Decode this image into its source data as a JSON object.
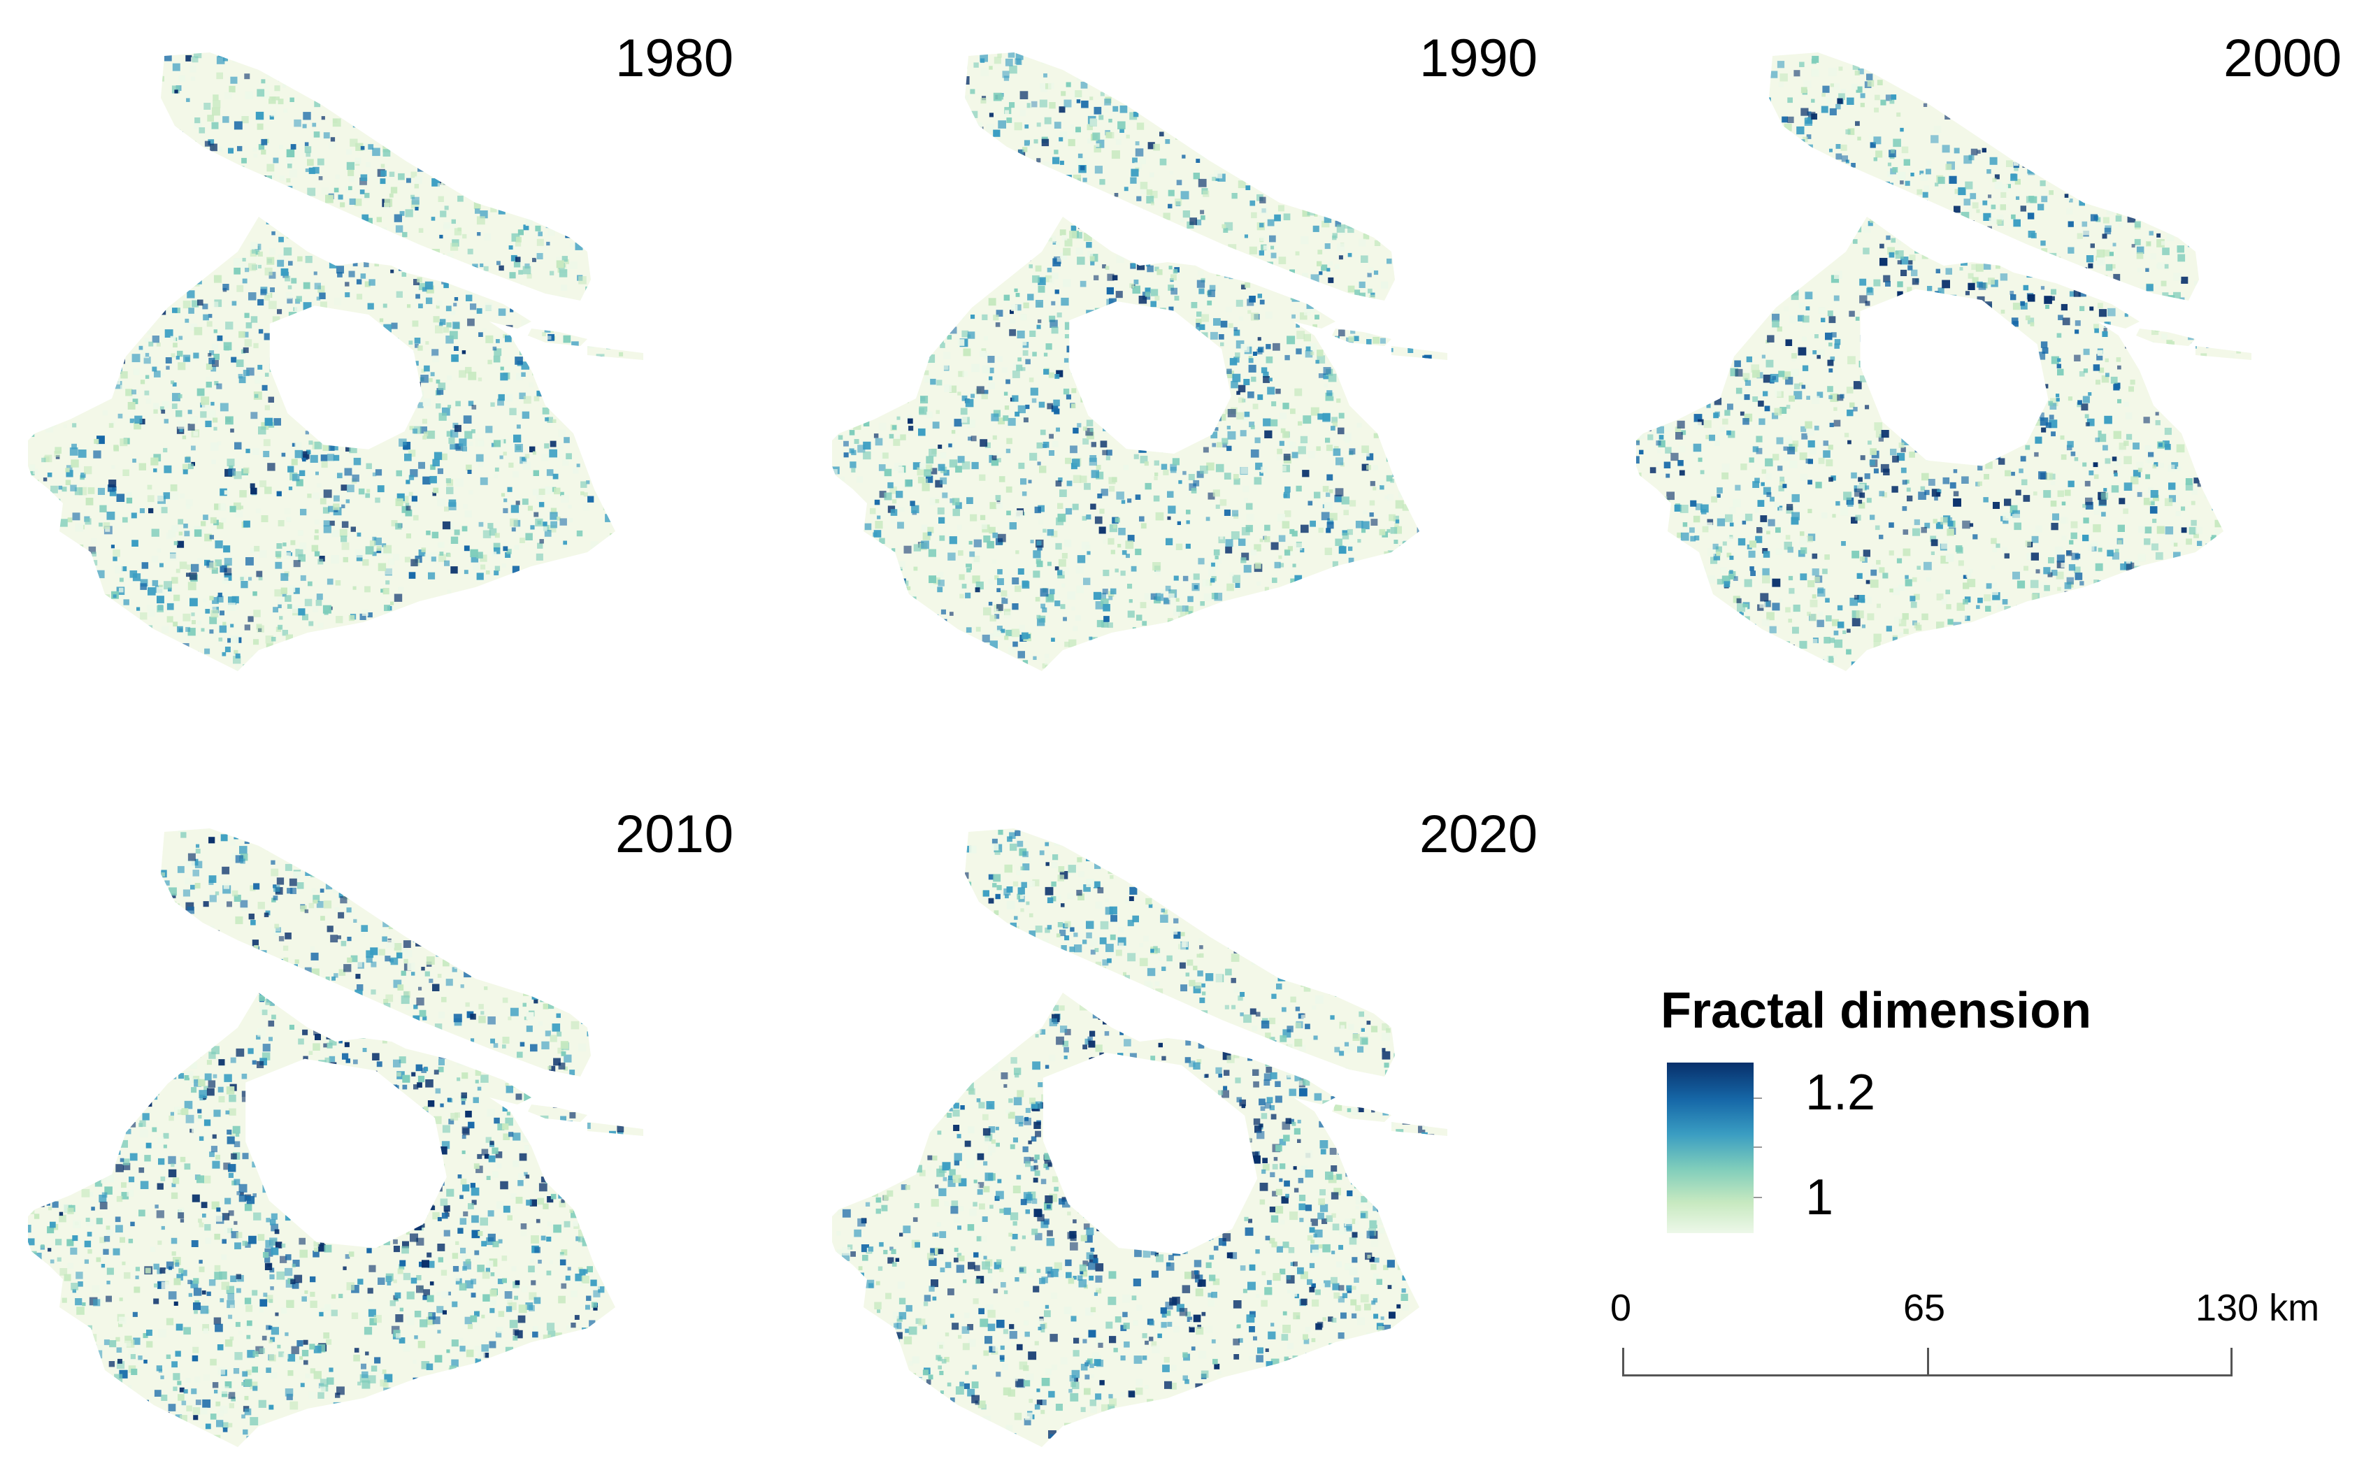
{
  "panels": [
    {
      "year": "1980",
      "intensity": 0.35
    },
    {
      "year": "1990",
      "intensity": 0.42
    },
    {
      "year": "2000",
      "intensity": 0.62
    },
    {
      "year": "2010",
      "intensity": 0.72
    },
    {
      "year": "2020",
      "intensity": 0.82
    }
  ],
  "legend": {
    "title": "Fractal dimension",
    "max_label": "1.2",
    "min_label": "1",
    "colors": [
      "#edf8e9",
      "#c7e9c0",
      "#7fcdbb",
      "#3a9dc2",
      "#1668a8",
      "#08306b"
    ]
  },
  "scalebar": {
    "labels": [
      "0",
      "65",
      "130 km"
    ]
  },
  "colors": {
    "land_background": "#f3f8e8",
    "urban_core": "#ffffff"
  }
}
